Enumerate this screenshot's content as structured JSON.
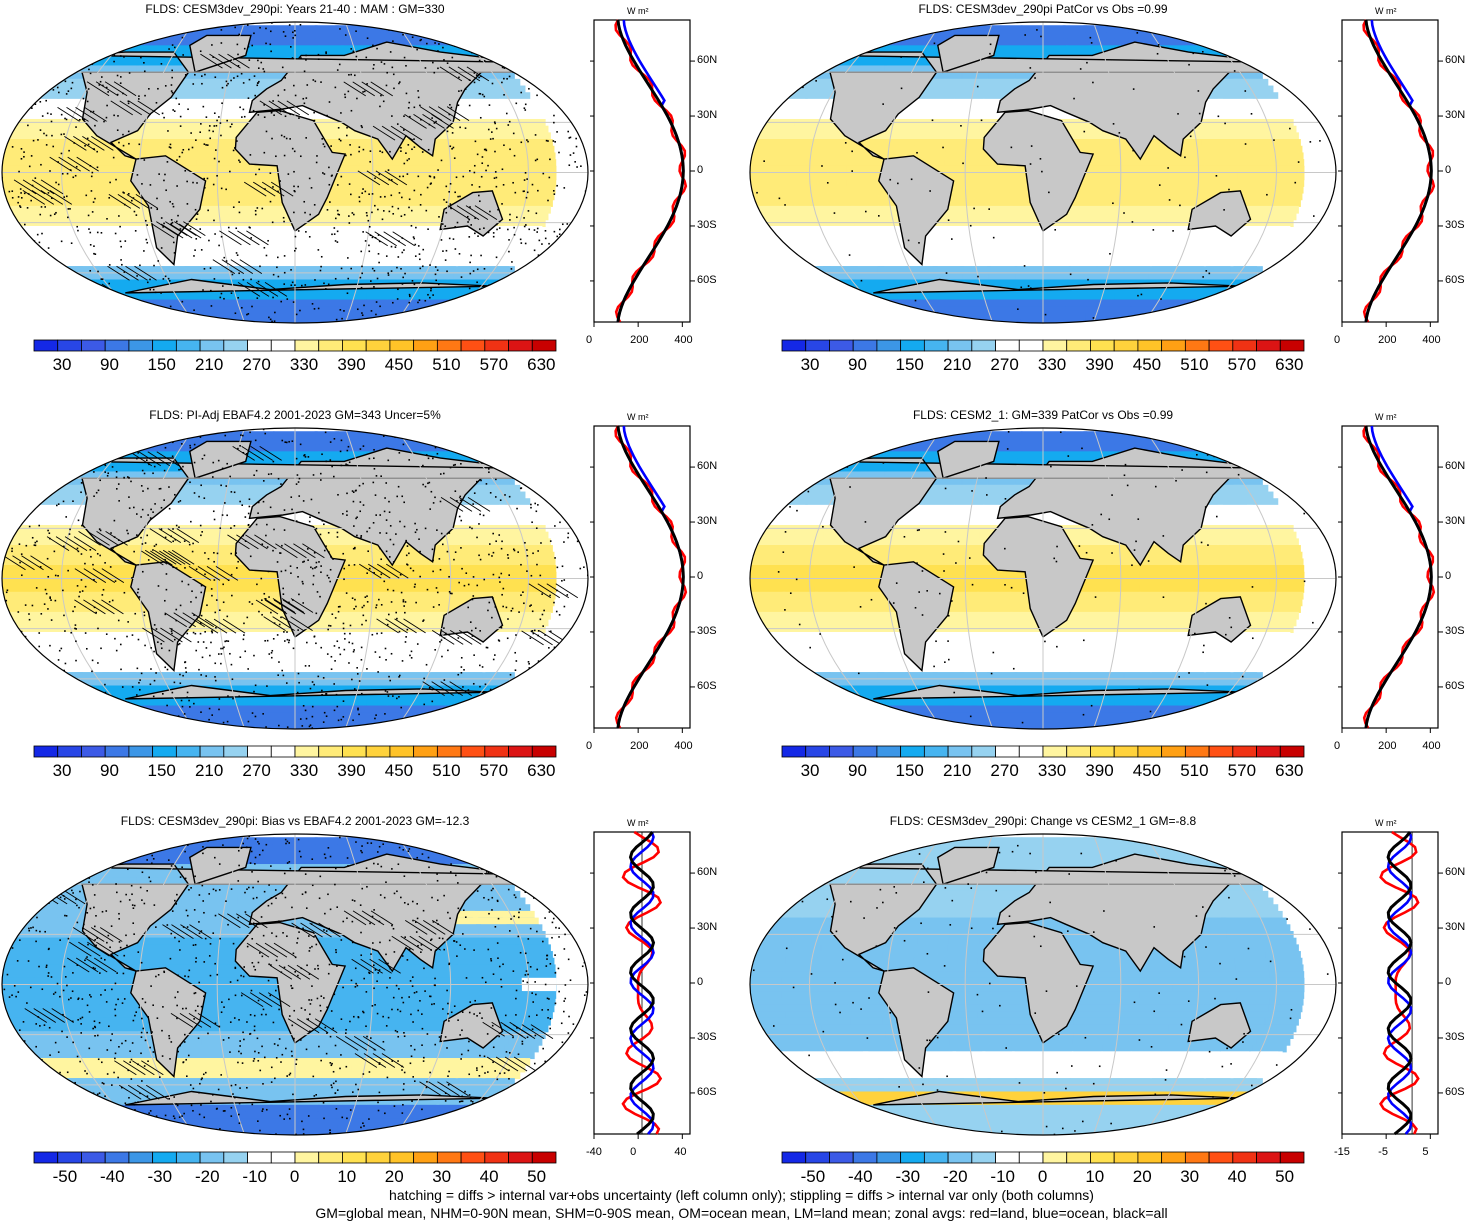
{
  "panels": [
    {
      "title": "FLDS: CESM3dev_290pi: Years 21-40 : MAM : GM=330",
      "style": "abs",
      "hatch": true,
      "stipple": "heavy",
      "colorbar_labels": [
        "30",
        "90",
        "150",
        "210",
        "270",
        "330",
        "390",
        "450",
        "510",
        "570",
        "630"
      ],
      "zonal_xticks": [
        "0",
        "200",
        "400"
      ],
      "zonal_yticks": [
        "60N",
        "30N",
        "0",
        "30S",
        "60S"
      ],
      "zonal_unit": "W m²"
    },
    {
      "title": "FLDS: CESM3dev_290pi PatCor vs Obs =0.99",
      "style": "abs",
      "hatch": false,
      "stipple": "light",
      "colorbar_labels": [
        "30",
        "90",
        "150",
        "210",
        "270",
        "330",
        "390",
        "450",
        "510",
        "570",
        "630"
      ],
      "zonal_xticks": [
        "0",
        "200",
        "400"
      ],
      "zonal_yticks": [
        "60N",
        "30N",
        "0",
        "30S",
        "60S"
      ],
      "zonal_unit": "W m²"
    },
    {
      "title": "FLDS: PI-Adj EBAF4.2 2001-2023 GM=343 Uncer=5%",
      "style": "abs2",
      "hatch": true,
      "stipple": "heavy",
      "colorbar_labels": [
        "30",
        "90",
        "150",
        "210",
        "270",
        "330",
        "390",
        "450",
        "510",
        "570",
        "630"
      ],
      "zonal_xticks": [
        "0",
        "200",
        "400"
      ],
      "zonal_yticks": [
        "60N",
        "30N",
        "0",
        "30S",
        "60S"
      ],
      "zonal_unit": "W m²"
    },
    {
      "title": "FLDS: CESM2_1: GM=339 PatCor vs Obs =0.99",
      "style": "abs2",
      "hatch": false,
      "stipple": "light",
      "colorbar_labels": [
        "30",
        "90",
        "150",
        "210",
        "270",
        "330",
        "390",
        "450",
        "510",
        "570",
        "630"
      ],
      "zonal_xticks": [
        "0",
        "200",
        "400"
      ],
      "zonal_yticks": [
        "60N",
        "30N",
        "0",
        "30S",
        "60S"
      ],
      "zonal_unit": "W m²"
    },
    {
      "title": "FLDS: CESM3dev_290pi: Bias vs EBAF4.2 2001-2023 GM=-12.3",
      "style": "bias",
      "hatch": true,
      "stipple": "heavy",
      "colorbar_labels": [
        "-50",
        "-40",
        "-30",
        "-20",
        "-10",
        "0",
        "10",
        "20",
        "30",
        "40",
        "50"
      ],
      "zonal_xticks": [
        "-40",
        "0",
        "40"
      ],
      "zonal_yticks": [
        "60N",
        "30N",
        "0",
        "30S",
        "60S"
      ],
      "zonal_unit": "W m²"
    },
    {
      "title": "FLDS: CESM3dev_290pi: Change vs CESM2_1 GM=-8.8",
      "style": "change",
      "hatch": false,
      "stipple": "light",
      "colorbar_labels": [
        "-50",
        "-40",
        "-30",
        "-20",
        "-10",
        "0",
        "10",
        "20",
        "30",
        "40",
        "50"
      ],
      "zonal_xticks": [
        "-15",
        "-5",
        "5"
      ],
      "zonal_yticks": [
        "60N",
        "30N",
        "0",
        "30S",
        "60S"
      ],
      "zonal_unit": "W m²"
    }
  ],
  "footer": {
    "line1": "hatching = diffs > internal var+obs uncertainty (left column only); stippling = diffs > internal var only (both columns)",
    "line2": "GM=global mean, NHM=0-90N mean, SHM=0-90S mean, OM=ocean mean, LM=land mean; zonal avgs: red=land, blue=ocean, black=all"
  },
  "colors": {
    "land_line": "#ff0000",
    "ocean_line": "#0000ff",
    "all_line": "#000000",
    "land_fill": "#c8c8c8",
    "scale": [
      "#1428e6",
      "#2846e6",
      "#3c5ae6",
      "#3c78e6",
      "#3c96e6",
      "#14aaf0",
      "#46b4f0",
      "#78c3f0",
      "#96d2f0",
      "#ffffff",
      "#ffffff",
      "#fff5a0",
      "#ffeb78",
      "#ffe150",
      "#ffd23c",
      "#ffc328",
      "#ffa014",
      "#ff7814",
      "#ff5014",
      "#f03214",
      "#dc1414",
      "#c80000"
    ]
  }
}
